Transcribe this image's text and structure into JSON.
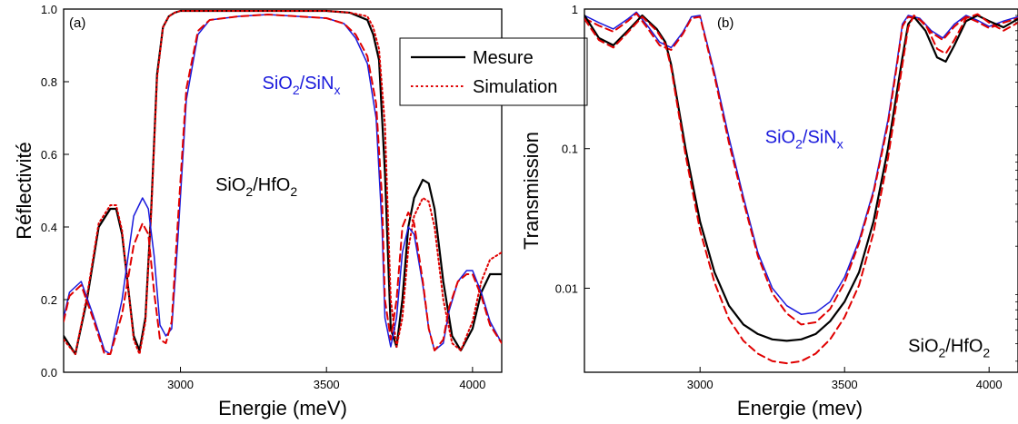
{
  "chart_data": [
    {
      "type": "line",
      "panel_label": "(a)",
      "xlabel": "Energie (meV)",
      "ylabel": "Réflectivité",
      "xlim": [
        2600,
        4100
      ],
      "ylim": [
        0.0,
        1.0
      ],
      "y_scale": "linear",
      "x_ticks": [
        3000,
        3500,
        4000
      ],
      "x_tick_labels": [
        "3000",
        "3500",
        "4000"
      ],
      "y_ticks": [
        0.0,
        0.2,
        0.4,
        0.6,
        0.8,
        1.0
      ],
      "y_tick_labels": [
        "0.0",
        "0.2",
        "0.4",
        "0.6",
        "0.8",
        "1.0"
      ],
      "grid": false,
      "legend": {
        "placement": "top-right",
        "entries": [
          {
            "label": "Mesure",
            "style": "solid",
            "color": "#000000"
          },
          {
            "label": "Simulation",
            "style": "dotted",
            "color": "#e00000"
          }
        ]
      },
      "annotations": [
        {
          "main": "SiO",
          "sub": "2",
          "main2": "/SiN",
          "sub2": "x",
          "color": "#1a1adc",
          "x": 3280,
          "y": 0.78
        },
        {
          "main": "SiO",
          "sub": "2",
          "main2": "/HfO",
          "sub2": "2",
          "color": "#000000",
          "x": 3120,
          "y": 0.5
        }
      ],
      "series": [
        {
          "sample": "SiO2/HfO2",
          "kind": "Mesure",
          "color": "#000000",
          "dash": "solid",
          "width": 2.2,
          "x": [
            2600,
            2640,
            2680,
            2720,
            2760,
            2780,
            2800,
            2840,
            2860,
            2880,
            2900,
            2920,
            2940,
            2960,
            2980,
            3000,
            3050,
            3100,
            3200,
            3300,
            3400,
            3500,
            3580,
            3640,
            3660,
            3680,
            3700,
            3720,
            3740,
            3760,
            3780,
            3800,
            3830,
            3850,
            3870,
            3900,
            3930,
            3960,
            4000,
            4030,
            4060,
            4100
          ],
          "y": [
            0.1,
            0.05,
            0.2,
            0.4,
            0.45,
            0.45,
            0.38,
            0.1,
            0.06,
            0.15,
            0.45,
            0.82,
            0.95,
            0.98,
            0.99,
            0.995,
            0.995,
            0.995,
            0.995,
            0.995,
            0.995,
            0.995,
            0.99,
            0.97,
            0.93,
            0.86,
            0.55,
            0.12,
            0.07,
            0.2,
            0.4,
            0.48,
            0.53,
            0.52,
            0.45,
            0.25,
            0.1,
            0.06,
            0.12,
            0.22,
            0.27,
            0.27
          ]
        },
        {
          "sample": "SiO2/HfO2",
          "kind": "Simulation",
          "color": "#e00000",
          "dash": "dotted",
          "width": 2,
          "x": [
            2600,
            2640,
            2680,
            2720,
            2760,
            2780,
            2800,
            2840,
            2860,
            2880,
            2900,
            2920,
            2940,
            2960,
            2980,
            3000,
            3050,
            3100,
            3200,
            3300,
            3400,
            3500,
            3580,
            3640,
            3660,
            3680,
            3700,
            3720,
            3740,
            3760,
            3780,
            3800,
            3830,
            3850,
            3870,
            3900,
            3930,
            3960,
            4000,
            4030,
            4060,
            4100
          ],
          "y": [
            0.09,
            0.05,
            0.21,
            0.41,
            0.46,
            0.46,
            0.39,
            0.09,
            0.05,
            0.14,
            0.44,
            0.81,
            0.95,
            0.98,
            0.99,
            0.995,
            0.995,
            0.995,
            0.995,
            0.995,
            0.995,
            0.995,
            0.99,
            0.98,
            0.95,
            0.89,
            0.68,
            0.2,
            0.07,
            0.15,
            0.34,
            0.43,
            0.48,
            0.47,
            0.4,
            0.2,
            0.08,
            0.06,
            0.14,
            0.25,
            0.31,
            0.33
          ]
        },
        {
          "sample": "SiO2/SiNx",
          "kind": "Mesure",
          "color": "#1a1adc",
          "dash": "solid",
          "width": 1.5,
          "x": [
            2600,
            2620,
            2660,
            2700,
            2740,
            2760,
            2800,
            2840,
            2870,
            2890,
            2910,
            2930,
            2950,
            2970,
            2990,
            3020,
            3060,
            3100,
            3200,
            3300,
            3400,
            3500,
            3560,
            3600,
            3640,
            3670,
            3690,
            3700,
            3720,
            3740,
            3760,
            3780,
            3800,
            3830,
            3850,
            3870,
            3900,
            3920,
            3950,
            3980,
            4000,
            4030,
            4060,
            4100
          ],
          "y": [
            0.15,
            0.22,
            0.25,
            0.16,
            0.06,
            0.05,
            0.2,
            0.43,
            0.48,
            0.45,
            0.32,
            0.13,
            0.1,
            0.12,
            0.35,
            0.75,
            0.93,
            0.97,
            0.98,
            0.985,
            0.98,
            0.975,
            0.96,
            0.92,
            0.85,
            0.7,
            0.4,
            0.15,
            0.07,
            0.15,
            0.33,
            0.4,
            0.38,
            0.24,
            0.12,
            0.06,
            0.08,
            0.17,
            0.25,
            0.28,
            0.28,
            0.22,
            0.14,
            0.08
          ]
        },
        {
          "sample": "SiO2/SiNx",
          "kind": "Simulation",
          "color": "#e00000",
          "dash": "dashed",
          "width": 2,
          "x": [
            2600,
            2620,
            2660,
            2700,
            2740,
            2760,
            2800,
            2840,
            2870,
            2890,
            2910,
            2930,
            2950,
            2970,
            2990,
            3020,
            3060,
            3100,
            3200,
            3300,
            3400,
            3500,
            3560,
            3600,
            3640,
            3670,
            3690,
            3700,
            3720,
            3740,
            3760,
            3780,
            3800,
            3830,
            3850,
            3870,
            3900,
            3920,
            3950,
            3980,
            4000,
            4030,
            4060,
            4100
          ],
          "y": [
            0.14,
            0.21,
            0.24,
            0.15,
            0.05,
            0.05,
            0.16,
            0.35,
            0.41,
            0.38,
            0.22,
            0.09,
            0.08,
            0.14,
            0.4,
            0.78,
            0.94,
            0.97,
            0.98,
            0.985,
            0.98,
            0.975,
            0.96,
            0.93,
            0.87,
            0.74,
            0.48,
            0.2,
            0.09,
            0.2,
            0.4,
            0.44,
            0.41,
            0.25,
            0.12,
            0.06,
            0.09,
            0.18,
            0.25,
            0.27,
            0.27,
            0.21,
            0.13,
            0.08
          ]
        }
      ]
    },
    {
      "type": "line",
      "panel_label": "(b)",
      "xlabel": "Energie (mev)",
      "ylabel": "Transmission",
      "xlim": [
        2600,
        4100
      ],
      "ylim": [
        0.0025,
        1.0
      ],
      "y_scale": "log",
      "x_ticks": [
        3000,
        3500,
        4000
      ],
      "x_tick_labels": [
        "3000",
        "3500",
        "4000"
      ],
      "y_ticks": [
        0.01,
        0.1,
        1
      ],
      "y_tick_labels": [
        "0.01",
        "0.1",
        "1"
      ],
      "grid": false,
      "annotations": [
        {
          "main": "SiO",
          "sub": "2",
          "main2": "/SiN",
          "sub2": "x",
          "color": "#1a1adc",
          "x": 3225,
          "y": 0.11
        },
        {
          "main": "SiO",
          "sub": "2",
          "main2": "/HfO",
          "sub2": "2",
          "color": "#000000",
          "x": 3720,
          "y": 0.0035
        }
      ],
      "series": [
        {
          "sample": "SiO2/SiNx",
          "kind": "Mesure",
          "color": "#1a1adc",
          "dash": "solid",
          "width": 1.5,
          "x": [
            2600,
            2650,
            2700,
            2750,
            2780,
            2820,
            2860,
            2900,
            2940,
            2970,
            3000,
            3050,
            3100,
            3150,
            3200,
            3250,
            3300,
            3350,
            3400,
            3450,
            3500,
            3550,
            3600,
            3650,
            3680,
            3700,
            3720,
            3760,
            3800,
            3840,
            3880,
            3920,
            3960,
            4000,
            4050,
            4100
          ],
          "y": [
            0.9,
            0.8,
            0.72,
            0.85,
            0.95,
            0.75,
            0.58,
            0.53,
            0.68,
            0.88,
            0.9,
            0.35,
            0.12,
            0.045,
            0.018,
            0.01,
            0.0075,
            0.0065,
            0.0067,
            0.008,
            0.012,
            0.022,
            0.05,
            0.16,
            0.4,
            0.78,
            0.9,
            0.86,
            0.7,
            0.62,
            0.78,
            0.9,
            0.83,
            0.75,
            0.82,
            0.88
          ]
        },
        {
          "sample": "SiO2/SiNx",
          "kind": "Simulation",
          "color": "#e00000",
          "dash": "dashed",
          "width": 2,
          "x": [
            2600,
            2650,
            2700,
            2750,
            2780,
            2820,
            2860,
            2900,
            2940,
            2970,
            3000,
            3050,
            3100,
            3150,
            3200,
            3250,
            3300,
            3350,
            3400,
            3450,
            3500,
            3550,
            3600,
            3650,
            3680,
            3700,
            3720,
            3760,
            3800,
            3840,
            3880,
            3920,
            3960,
            4000,
            4050,
            4100
          ],
          "y": [
            0.86,
            0.76,
            0.69,
            0.82,
            0.93,
            0.72,
            0.55,
            0.51,
            0.66,
            0.86,
            0.88,
            0.33,
            0.11,
            0.042,
            0.017,
            0.0092,
            0.0066,
            0.0055,
            0.0057,
            0.0071,
            0.011,
            0.021,
            0.048,
            0.15,
            0.38,
            0.75,
            0.88,
            0.84,
            0.68,
            0.6,
            0.75,
            0.88,
            0.81,
            0.73,
            0.8,
            0.86
          ]
        },
        {
          "sample": "SiO2/HfO2",
          "kind": "Mesure",
          "color": "#000000",
          "dash": "solid",
          "width": 2.2,
          "x": [
            2600,
            2650,
            2700,
            2750,
            2800,
            2850,
            2880,
            2900,
            2950,
            3000,
            3050,
            3100,
            3150,
            3200,
            3250,
            3300,
            3350,
            3400,
            3450,
            3500,
            3550,
            3600,
            3650,
            3700,
            3720,
            3740,
            3780,
            3820,
            3850,
            3880,
            3920,
            3960,
            4000,
            4050,
            4100
          ],
          "y": [
            0.9,
            0.62,
            0.55,
            0.7,
            0.9,
            0.72,
            0.58,
            0.4,
            0.1,
            0.03,
            0.013,
            0.0075,
            0.0055,
            0.0047,
            0.0043,
            0.0042,
            0.0043,
            0.0047,
            0.0058,
            0.008,
            0.013,
            0.03,
            0.1,
            0.45,
            0.78,
            0.88,
            0.7,
            0.45,
            0.42,
            0.55,
            0.82,
            0.9,
            0.82,
            0.74,
            0.85
          ]
        },
        {
          "sample": "SiO2/HfO2",
          "kind": "Simulation",
          "color": "#e00000",
          "dash": "dashed",
          "width": 2,
          "x": [
            2600,
            2650,
            2700,
            2750,
            2800,
            2850,
            2880,
            2900,
            2950,
            3000,
            3050,
            3100,
            3150,
            3200,
            3250,
            3300,
            3350,
            3400,
            3450,
            3500,
            3550,
            3600,
            3650,
            3700,
            3720,
            3740,
            3780,
            3820,
            3850,
            3880,
            3920,
            3960,
            4000,
            4050,
            4100
          ],
          "y": [
            0.85,
            0.6,
            0.53,
            0.68,
            0.88,
            0.7,
            0.56,
            0.38,
            0.09,
            0.026,
            0.011,
            0.006,
            0.0042,
            0.0034,
            0.003,
            0.0029,
            0.003,
            0.0034,
            0.0043,
            0.0062,
            0.0105,
            0.025,
            0.085,
            0.4,
            0.74,
            0.9,
            0.78,
            0.52,
            0.48,
            0.6,
            0.86,
            0.92,
            0.8,
            0.7,
            0.8
          ]
        }
      ]
    }
  ]
}
